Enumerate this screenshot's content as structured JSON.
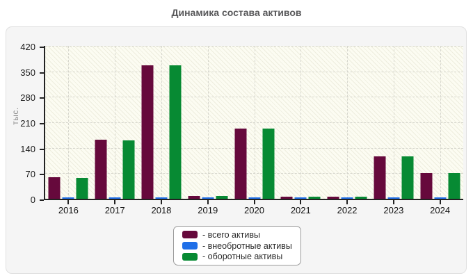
{
  "chart_data": {
    "type": "bar",
    "title": "Динамика состава активов",
    "ylabel": "тыс.",
    "categories": [
      "2016",
      "2017",
      "2018",
      "2019",
      "2020",
      "2021",
      "2022",
      "2023",
      "2024"
    ],
    "series": [
      {
        "key": "total",
        "name": "всего активы",
        "legend_label": "- всего активы",
        "color": "#66093C",
        "values": [
          60,
          162,
          366,
          7,
          193,
          5,
          5,
          116,
          70
        ]
      },
      {
        "key": "noncurrent",
        "name": "внеобротные активы",
        "legend_label": "- внеобротные активы",
        "color": "#1F6FE8",
        "values": [
          3,
          3,
          3,
          3,
          3,
          3,
          3,
          3,
          3
        ]
      },
      {
        "key": "current",
        "name": "оборотные активы",
        "legend_label": "- оборотные активы",
        "color": "#078A33",
        "values": [
          58,
          161,
          366,
          7,
          193,
          6,
          6,
          116,
          70
        ]
      }
    ],
    "ylim": [
      0,
      420
    ],
    "yticks": [
      0,
      70,
      140,
      210,
      280,
      350,
      420
    ],
    "grid": true,
    "legend_position": "bottom-center"
  }
}
